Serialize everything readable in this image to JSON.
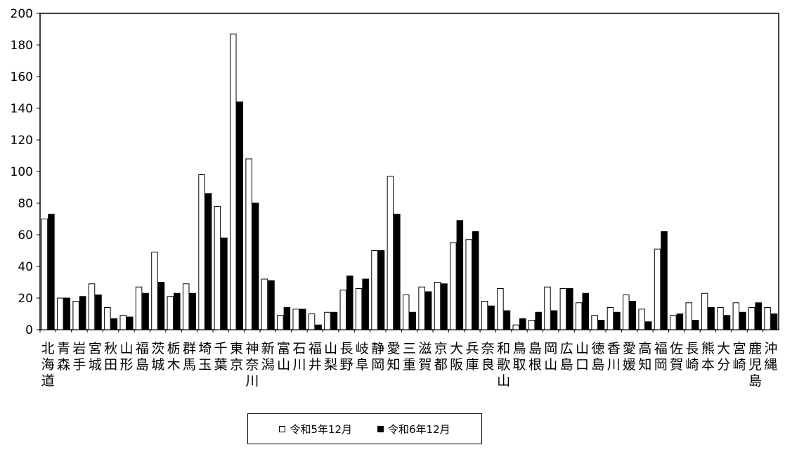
{
  "chart_data": {
    "type": "bar",
    "title": "",
    "xlabel": "",
    "ylabel": "",
    "ylim": [
      0,
      200
    ],
    "yticks": [
      0,
      20,
      40,
      60,
      80,
      100,
      120,
      140,
      160,
      180,
      200
    ],
    "grid": false,
    "legend_position": "bottom",
    "categories": [
      "北海道",
      "青森",
      "岩手",
      "宮城",
      "秋田",
      "山形",
      "福島",
      "茨城",
      "栃木",
      "群馬",
      "埼玉",
      "千葉",
      "東京",
      "神奈川",
      "新潟",
      "富山",
      "石川",
      "福井",
      "山梨",
      "長野",
      "岐阜",
      "静岡",
      "愛知",
      "三重",
      "滋賀",
      "京都",
      "大阪",
      "兵庫",
      "奈良",
      "和歌山",
      "鳥取",
      "島根",
      "岡山",
      "広島",
      "山口",
      "徳島",
      "香川",
      "愛媛",
      "高知",
      "福岡",
      "佐賀",
      "長崎",
      "熊本",
      "大分",
      "宮崎",
      "鹿児島",
      "沖縄"
    ],
    "series": [
      {
        "name": "令和5年12月",
        "color": "#ffffff",
        "values": [
          70,
          20,
          18,
          29,
          14,
          9,
          27,
          49,
          21,
          29,
          98,
          78,
          187,
          108,
          32,
          9,
          13,
          10,
          11,
          25,
          26,
          50,
          97,
          22,
          27,
          30,
          55,
          57,
          18,
          26,
          3,
          6,
          27,
          26,
          17,
          9,
          14,
          22,
          13,
          51,
          9,
          17,
          23,
          14,
          17,
          14,
          14
        ]
      },
      {
        "name": "令和6年12月",
        "color": "#000000",
        "values": [
          73,
          20,
          21,
          22,
          7,
          8,
          23,
          30,
          23,
          23,
          86,
          58,
          144,
          80,
          31,
          14,
          13,
          3,
          11,
          34,
          32,
          50,
          73,
          11,
          24,
          29,
          69,
          62,
          15,
          12,
          7,
          11,
          12,
          26,
          23,
          6,
          11,
          18,
          5,
          62,
          10,
          6,
          14,
          9,
          11,
          17,
          10
        ]
      }
    ]
  }
}
